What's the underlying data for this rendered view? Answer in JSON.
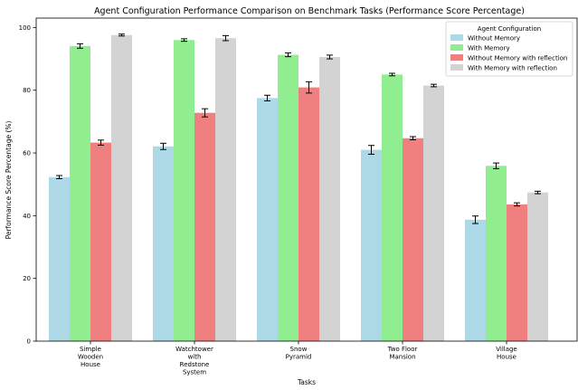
{
  "chart_data": {
    "type": "bar",
    "title": "Agent Configuration Performance Comparison on Benchmark Tasks (Performance Score Percentage)",
    "xlabel": "Tasks",
    "ylabel": "Performance Score Percentage (%)",
    "ylim": [
      0,
      103
    ],
    "yticks": [
      0,
      20,
      40,
      60,
      80,
      100
    ],
    "grid": false,
    "legend": {
      "title": "Agent Configuration",
      "placement": "top-right"
    },
    "categories": [
      [
        "Simple",
        "Wooden",
        "House"
      ],
      [
        "Watchtower",
        "with",
        "Redstone",
        "System"
      ],
      [
        "Snow",
        "Pyramid"
      ],
      [
        "Two Floor",
        "Mansion"
      ],
      [
        "Village",
        "House"
      ]
    ],
    "series": [
      {
        "name": "Without Memory",
        "color": "#add8e6",
        "values": [
          52.3,
          62.1,
          77.5,
          61.0,
          38.7
        ],
        "errors": [
          0.5,
          1.0,
          0.9,
          1.4,
          1.2
        ]
      },
      {
        "name": "With Memory",
        "color": "#90ee90",
        "values": [
          94.1,
          96.0,
          91.3,
          85.0,
          55.9
        ],
        "errors": [
          0.7,
          0.4,
          0.6,
          0.4,
          0.9
        ]
      },
      {
        "name": "Without Memory with reflection",
        "color": "#f08080",
        "values": [
          63.3,
          72.8,
          80.9,
          64.7,
          43.6
        ],
        "errors": [
          0.8,
          1.3,
          1.8,
          0.5,
          0.5
        ]
      },
      {
        "name": "With Memory with reflection",
        "color": "#d3d3d3",
        "values": [
          97.6,
          96.6,
          90.6,
          81.5,
          47.4
        ],
        "errors": [
          0.3,
          0.8,
          0.6,
          0.4,
          0.4
        ]
      }
    ]
  }
}
